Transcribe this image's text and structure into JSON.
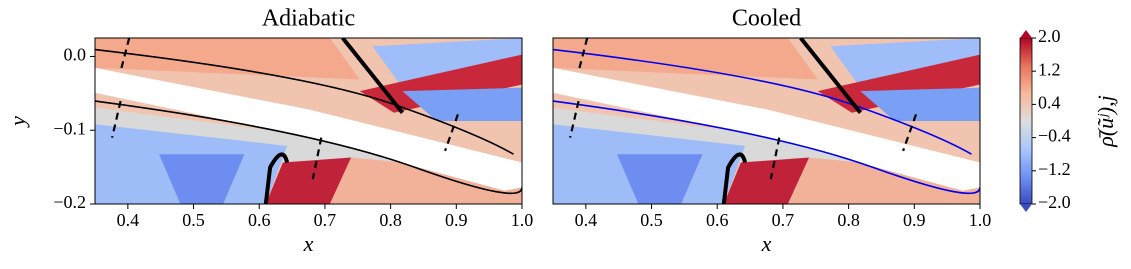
{
  "chart_data": [
    {
      "type": "contour",
      "title": "Adiabatic",
      "xlabel": "x",
      "ylabel": "y",
      "xlim": [
        0.35,
        1.0
      ],
      "ylim": [
        -0.2,
        0.025
      ],
      "xticks": [
        0.4,
        0.5,
        0.6,
        0.7,
        0.8,
        0.9,
        {
          "value": 1.0,
          "label": "1.0"
        }
      ],
      "yticks": [
        {
          "value": 0,
          "label": "0.0"
        },
        {
          "value": -0.1,
          "label": "−0.1"
        },
        {
          "value": -0.2,
          "label": "−0.2"
        }
      ],
      "line_color": "#000000"
    },
    {
      "type": "contour",
      "title": "Cooled",
      "xlabel": "x",
      "xlim": [
        0.35,
        1.0
      ],
      "ylim": [
        -0.2,
        0.025
      ],
      "xticks": [
        0.4,
        0.5,
        0.6,
        0.7,
        0.8,
        0.9,
        {
          "value": 1.0,
          "label": "1.0"
        }
      ],
      "line_color": "#0000ee"
    }
  ],
  "colorbar": {
    "label": "ρ̄(ũʲ),j",
    "lim": [
      -2.0,
      2.0
    ],
    "colormap": "coolwarm",
    "ticks": [
      {
        "value": 2.0,
        "label": "2.0"
      },
      1.2,
      0.4,
      {
        "value": -0.4,
        "label": "−0.4"
      },
      {
        "value": -1.2,
        "label": "−1.2"
      },
      {
        "value": -2.0,
        "label": "−2.0"
      }
    ]
  }
}
